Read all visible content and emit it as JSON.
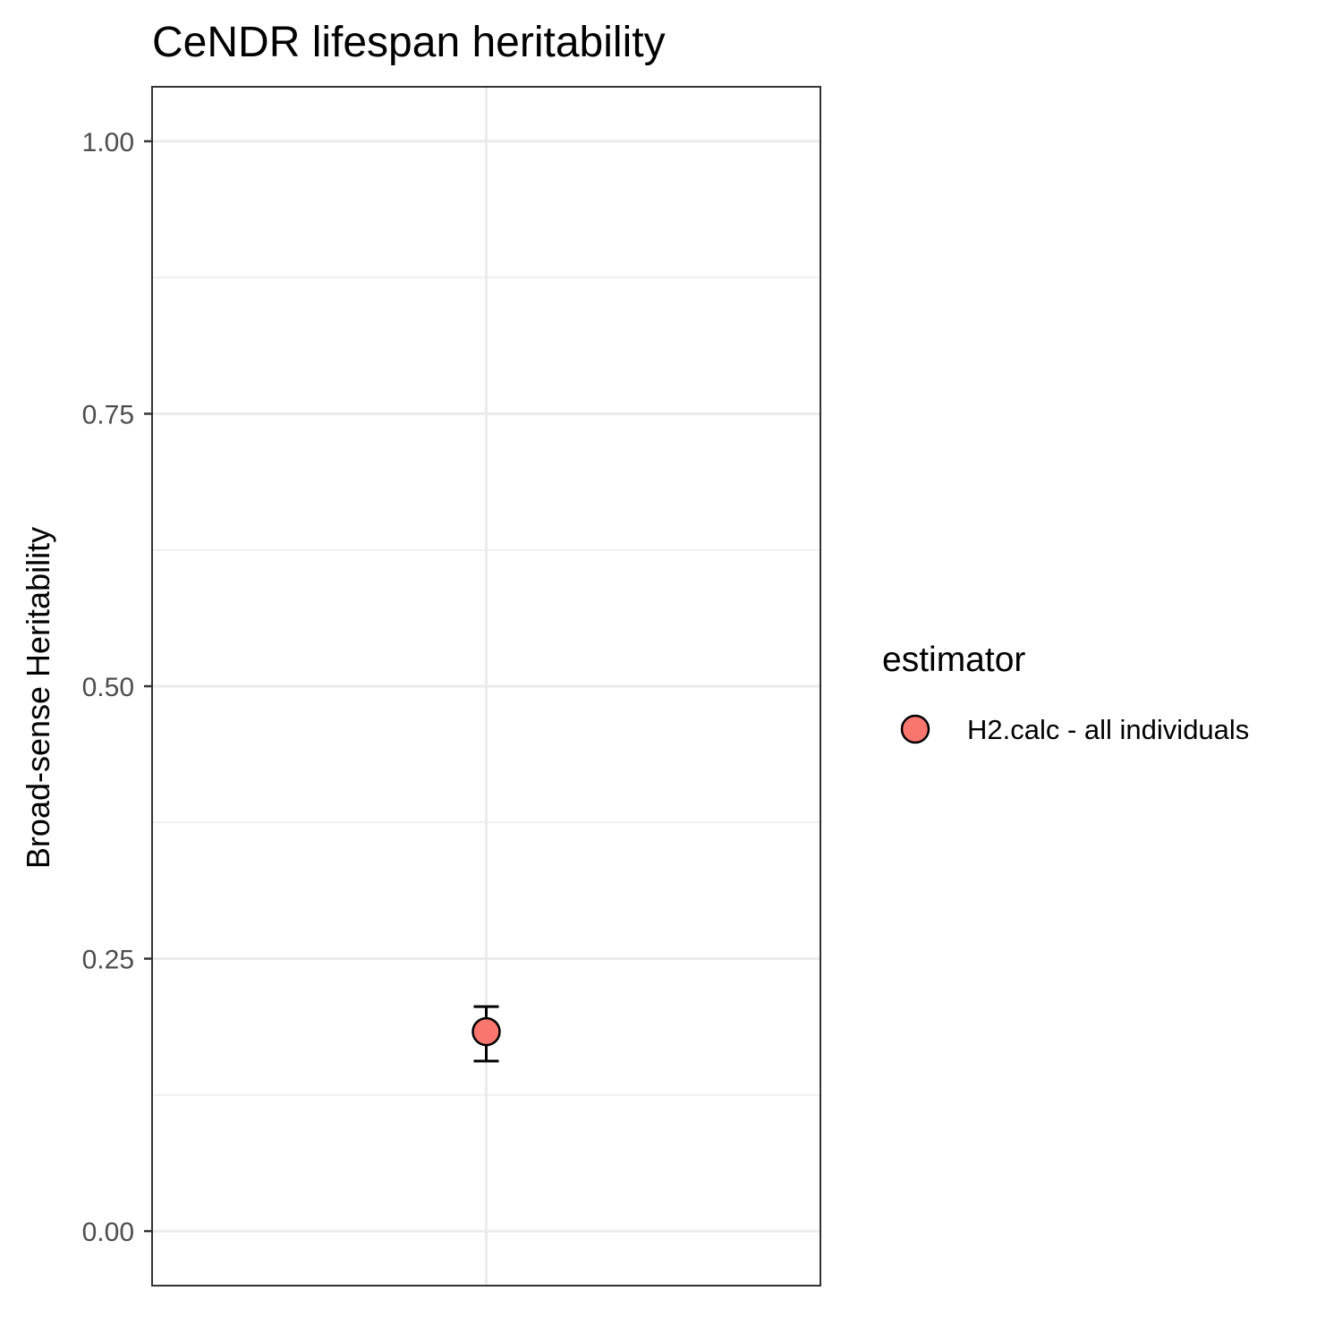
{
  "chart_data": {
    "type": "scatter",
    "title": "CeNDR lifespan heritability",
    "xlabel": "",
    "ylabel": "Broad-sense Heritability",
    "ylim": [
      -0.05,
      1.05
    ],
    "y_ticks": [
      0.0,
      0.25,
      0.5,
      0.75,
      1.0
    ],
    "y_tick_labels": [
      "0.00",
      "0.25",
      "0.50",
      "0.75",
      "1.00"
    ],
    "y_minor_ticks": [
      0.125,
      0.375,
      0.625,
      0.875
    ],
    "grid": true,
    "legend": {
      "title": "estimator",
      "placement": "right"
    },
    "series": [
      {
        "name": "H2.calc - all individuals",
        "color": "#F8766D",
        "points": [
          {
            "y": 0.183,
            "lower": 0.156,
            "upper": 0.206
          }
        ]
      }
    ]
  }
}
